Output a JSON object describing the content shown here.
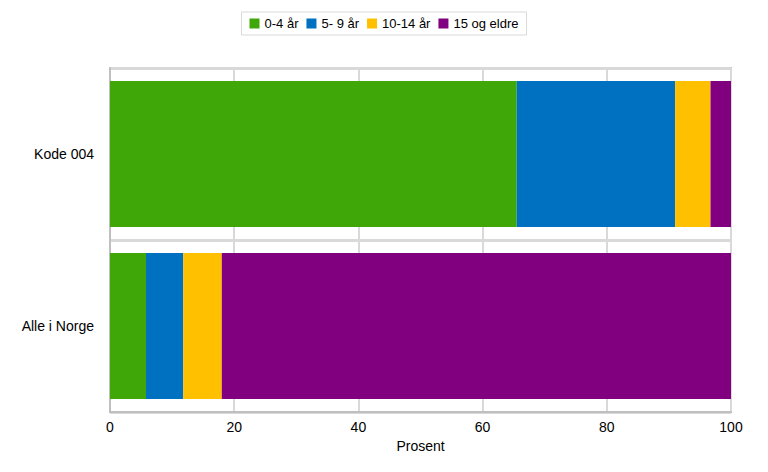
{
  "chart_data": {
    "type": "bar",
    "orientation": "horizontal",
    "stacked": true,
    "categories": [
      "Kode 004",
      "Alle i Norge"
    ],
    "series": [
      {
        "name": "0-4 år",
        "color": "#3fa808",
        "values": [
          65.5,
          5.8
        ]
      },
      {
        "name": "5- 9 år",
        "color": "#0070c0",
        "values": [
          25.5,
          6.0
        ]
      },
      {
        "name": "10-14 år",
        "color": "#ffc000",
        "values": [
          5.7,
          6.2
        ]
      },
      {
        "name": "15 og eldre",
        "color": "#800080",
        "values": [
          3.3,
          82.0
        ]
      }
    ],
    "xlabel": "Prosent",
    "xlim": [
      0,
      100
    ],
    "xticks": [
      0,
      20,
      40,
      60,
      80,
      100
    ],
    "grid": true,
    "legend": "top"
  }
}
